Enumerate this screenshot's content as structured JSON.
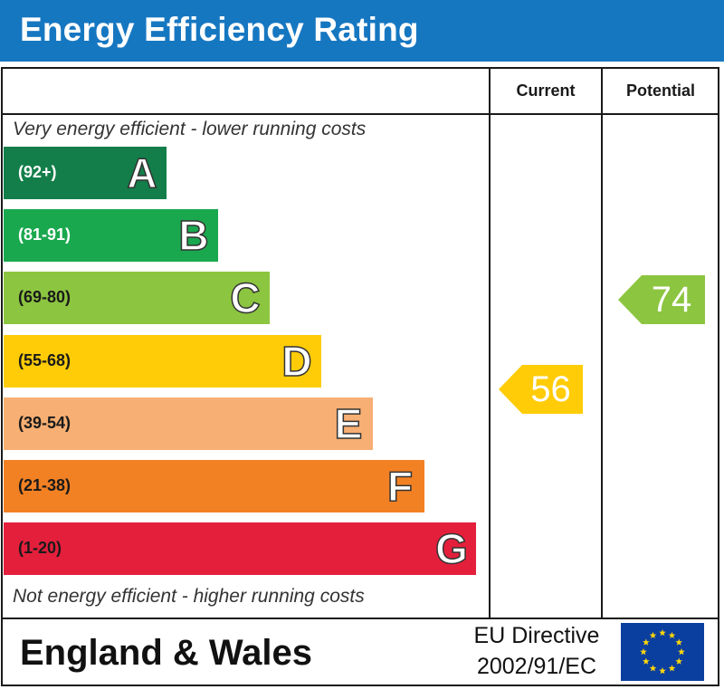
{
  "header": {
    "title": "Energy Efficiency Rating"
  },
  "columns": {
    "current_label": "Current",
    "potential_label": "Potential"
  },
  "captions": {
    "top": "Very energy efficient - lower running costs",
    "bottom": "Not energy efficient - higher running costs"
  },
  "footer": {
    "region": "England & Wales",
    "directive_line1": "EU Directive",
    "directive_line2": "2002/91/EC",
    "flag_icon": "eu-flag-icon"
  },
  "chart_data": {
    "type": "bar",
    "title": "Energy Efficiency Rating",
    "categories": [
      "A",
      "B",
      "C",
      "D",
      "E",
      "F",
      "G"
    ],
    "bands": [
      {
        "letter": "A",
        "range": "(92+)",
        "color": "#137e49",
        "text_color": "#ffffff"
      },
      {
        "letter": "B",
        "range": "(81-91)",
        "color": "#1aa84f",
        "text_color": "#ffffff"
      },
      {
        "letter": "C",
        "range": "(69-80)",
        "color": "#8cc540",
        "text_color": "#1a1a1a"
      },
      {
        "letter": "D",
        "range": "(55-68)",
        "color": "#ffcc07",
        "text_color": "#1a1a1a"
      },
      {
        "letter": "E",
        "range": "(39-54)",
        "color": "#f7af73",
        "text_color": "#1a1a1a"
      },
      {
        "letter": "F",
        "range": "(21-38)",
        "color": "#f28124",
        "text_color": "#1a1a1a"
      },
      {
        "letter": "G",
        "range": "(1-20)",
        "color": "#e41f3c",
        "text_color": "#1a1a1a"
      }
    ],
    "current": {
      "value": 56,
      "band": "D",
      "color": "#ffcc07"
    },
    "potential": {
      "value": 74,
      "band": "C",
      "color": "#8cc540"
    }
  }
}
